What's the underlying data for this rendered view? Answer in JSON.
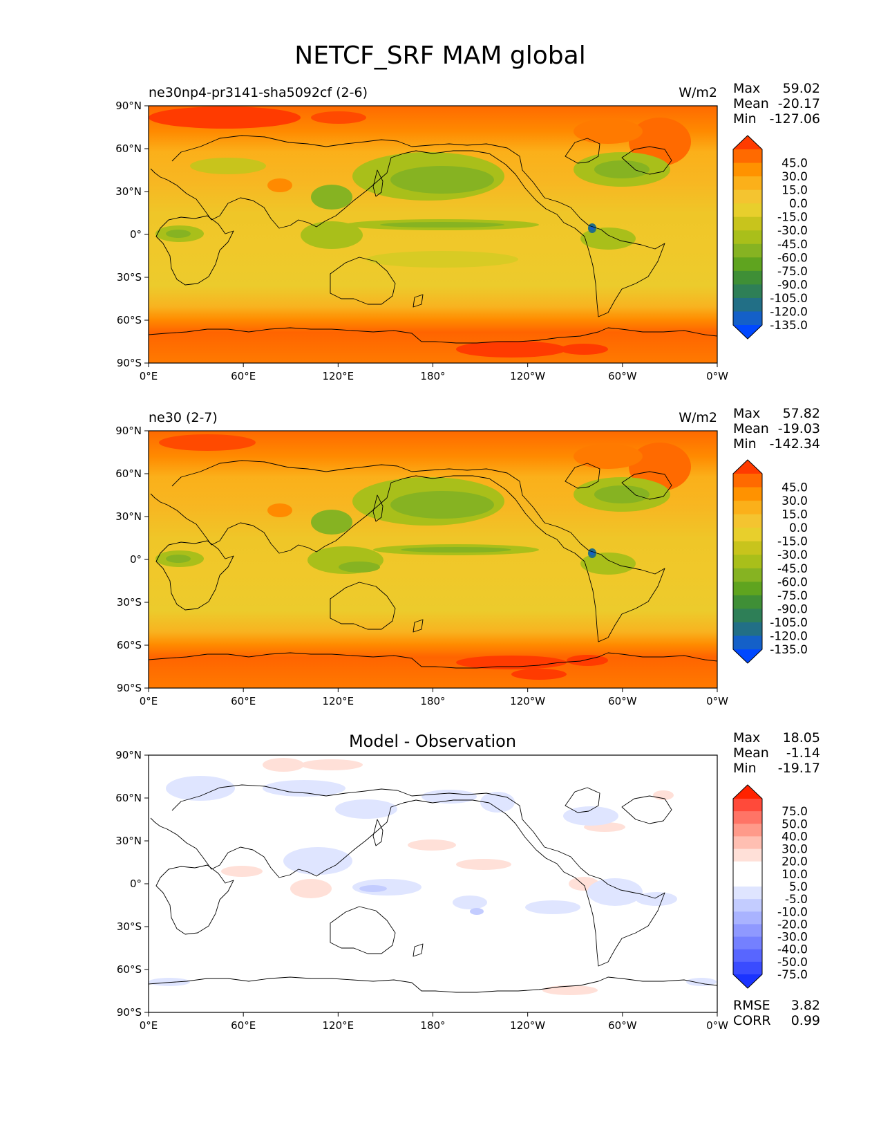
{
  "figure": {
    "title": "NETCF_SRF MAM global",
    "colormap_panels": [
      "#ff3b00",
      "#ff6a00",
      "#ff9200",
      "#fbb01a",
      "#f4c430",
      "#e8cf2c",
      "#c8c41c",
      "#a9bf1a",
      "#86b322",
      "#5fa41f",
      "#3f8f36",
      "#2e7f57",
      "#226f86",
      "#1460c8",
      "#0048ff"
    ],
    "colormap_diff": [
      "#ff2200",
      "#ff4a3a",
      "#ff7466",
      "#ff9a8a",
      "#ffbfb2",
      "#ffe0d8",
      "#ffffff",
      "#ffffff",
      "#dfe5ff",
      "#c3ccff",
      "#a9b3ff",
      "#8f99ff",
      "#7480ff",
      "#5866ff",
      "#3a4cff",
      "#1a33ff"
    ]
  },
  "panels": [
    {
      "id": "test",
      "title": "ne30np4-pr3141-sha5092cf (2-6)",
      "units": "W/m2",
      "stats": {
        "max_label": "Max",
        "max": "59.02",
        "mean_label": "Mean",
        "mean": "-20.17",
        "min_label": "Min",
        "min": "-127.06"
      },
      "colorbar_labels": [
        "45.0",
        "30.0",
        "15.0",
        "0.0",
        "-15.0",
        "-30.0",
        "-45.0",
        "-60.0",
        "-75.0",
        "-90.0",
        "-105.0",
        "-120.0",
        "-135.0"
      ],
      "x_ticks": [
        "0°E",
        "60°E",
        "120°E",
        "180°",
        "120°W",
        "60°W",
        "0°W"
      ],
      "y_ticks": [
        "90°N",
        "60°N",
        "30°N",
        "0°",
        "30°S",
        "60°S",
        "90°S"
      ]
    },
    {
      "id": "reference",
      "title": "ne30 (2-7)",
      "units": "W/m2",
      "stats": {
        "max_label": "Max",
        "max": "57.82",
        "mean_label": "Mean",
        "mean": "-19.03",
        "min_label": "Min",
        "min": "-142.34"
      },
      "colorbar_labels": [
        "45.0",
        "30.0",
        "15.0",
        "0.0",
        "-15.0",
        "-30.0",
        "-45.0",
        "-60.0",
        "-75.0",
        "-90.0",
        "-105.0",
        "-120.0",
        "-135.0"
      ],
      "x_ticks": [
        "0°E",
        "60°E",
        "120°E",
        "180°",
        "120°W",
        "60°W",
        "0°W"
      ],
      "y_ticks": [
        "90°N",
        "60°N",
        "30°N",
        "0°",
        "30°S",
        "60°S",
        "90°S"
      ]
    },
    {
      "id": "difference",
      "title": "Model - Observation",
      "stats": {
        "max_label": "Max",
        "max": "18.05",
        "mean_label": "Mean",
        "mean": "-1.14",
        "min_label": "Min",
        "min": "-19.17"
      },
      "colorbar_labels": [
        "75.0",
        "50.0",
        "40.0",
        "30.0",
        "20.0",
        "10.0",
        "5.0",
        "-5.0",
        "-10.0",
        "-20.0",
        "-30.0",
        "-40.0",
        "-50.0",
        "-75.0"
      ],
      "x_ticks": [
        "0°E",
        "60°E",
        "120°E",
        "180°",
        "120°W",
        "60°W",
        "0°W"
      ],
      "y_ticks": [
        "90°N",
        "60°N",
        "30°N",
        "0°",
        "30°S",
        "60°S",
        "90°S"
      ],
      "rmse_label": "RMSE",
      "rmse": "3.82",
      "corr_label": "CORR",
      "corr": "0.99"
    }
  ]
}
